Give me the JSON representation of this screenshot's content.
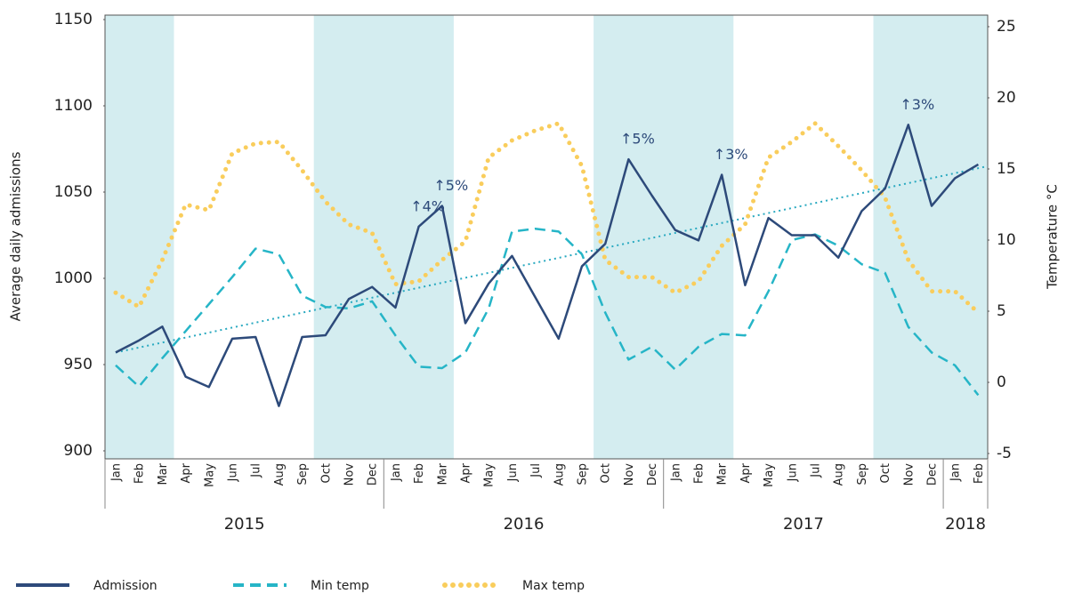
{
  "chart_data": {
    "type": "line",
    "ylabel": "Average daily admissions",
    "y2label": "Temperature °C",
    "categories": [
      "Jan",
      "Feb",
      "Mar",
      "Apr",
      "May",
      "Jun",
      "Jul",
      "Aug",
      "Sep",
      "Oct",
      "Nov",
      "Dec",
      "Jan",
      "Feb",
      "Mar",
      "Apr",
      "May",
      "Jun",
      "Jul",
      "Aug",
      "Sep",
      "Oct",
      "Nov",
      "Dec",
      "Jan",
      "Feb",
      "Mar",
      "Apr",
      "May",
      "Jun",
      "Jul",
      "Aug",
      "Sep",
      "Oct",
      "Nov",
      "Dec",
      "Jan",
      "Feb"
    ],
    "years": [
      {
        "label": "2015",
        "start": 0,
        "end": 11
      },
      {
        "label": "2016",
        "start": 12,
        "end": 23
      },
      {
        "label": "2017",
        "start": 24,
        "end": 35
      },
      {
        "label": "2018",
        "start": 36,
        "end": 37
      }
    ],
    "shaded_ranges": [
      [
        0,
        2
      ],
      [
        9,
        14
      ],
      [
        21,
        26
      ],
      [
        33,
        37
      ]
    ],
    "shade_color": "#d4edf0",
    "series": [
      {
        "name": "Admission",
        "color": "#2d4a7a",
        "style": "solid",
        "axis": "y",
        "values": [
          957,
          964,
          972,
          943,
          937,
          965,
          966,
          926,
          966,
          967,
          988,
          995,
          983,
          1030,
          1042,
          974,
          997,
          1013,
          989,
          965,
          1007,
          1020,
          1069,
          1048,
          1028,
          1022,
          1060,
          996,
          1035,
          1025,
          1025,
          1012,
          1039,
          1052,
          1089,
          1042,
          1058,
          1066
        ]
      },
      {
        "name": "Min temp",
        "color": "#26b5c7",
        "style": "dashed",
        "axis": "y2",
        "values": [
          1.2,
          -0.3,
          1.7,
          3.6,
          5.5,
          7.4,
          9.4,
          9,
          6.1,
          5.3,
          5.2,
          5.7,
          3.3,
          1.1,
          1,
          2.1,
          5.2,
          10.6,
          10.8,
          10.6,
          9,
          4.9,
          1.6,
          2.5,
          0.9,
          2.5,
          3.4,
          3.3,
          6.4,
          10,
          10.4,
          9.6,
          8.3,
          7.7,
          3.9,
          2.1,
          1.2,
          -0.9
        ]
      },
      {
        "name": "Max temp",
        "color": "#f9cd5c",
        "style": "dotted",
        "axis": "y2",
        "values": [
          6.3,
          5.3,
          8.6,
          12.5,
          12.1,
          16.1,
          16.8,
          16.9,
          14.9,
          12.7,
          11.1,
          10.5,
          6.9,
          7.1,
          8.6,
          9.9,
          15.8,
          17,
          17.7,
          18.2,
          15.2,
          8.6,
          7.4,
          7.4,
          6.3,
          7.1,
          9.6,
          11.1,
          15.8,
          16.9,
          18.2,
          16.6,
          14.9,
          13,
          8.6,
          6.4,
          6.4,
          4.9
        ]
      }
    ],
    "trendline": {
      "start": 957,
      "end": 1065,
      "color": "#29a9c0"
    },
    "annotations": [
      {
        "text": "↑4%",
        "index": 13
      },
      {
        "text": "↑5%",
        "index": 14
      },
      {
        "text": "↑5%",
        "index": 22
      },
      {
        "text": "↑3%",
        "index": 26
      },
      {
        "text": "↑3%",
        "index": 34
      }
    ],
    "ylim": [
      900,
      1150
    ],
    "yticks": [
      900,
      950,
      1000,
      1050,
      1100,
      1150
    ],
    "y2lim": [
      -5,
      25
    ],
    "y2ticks": [
      -5,
      0,
      5,
      10,
      15,
      20,
      25
    ]
  }
}
